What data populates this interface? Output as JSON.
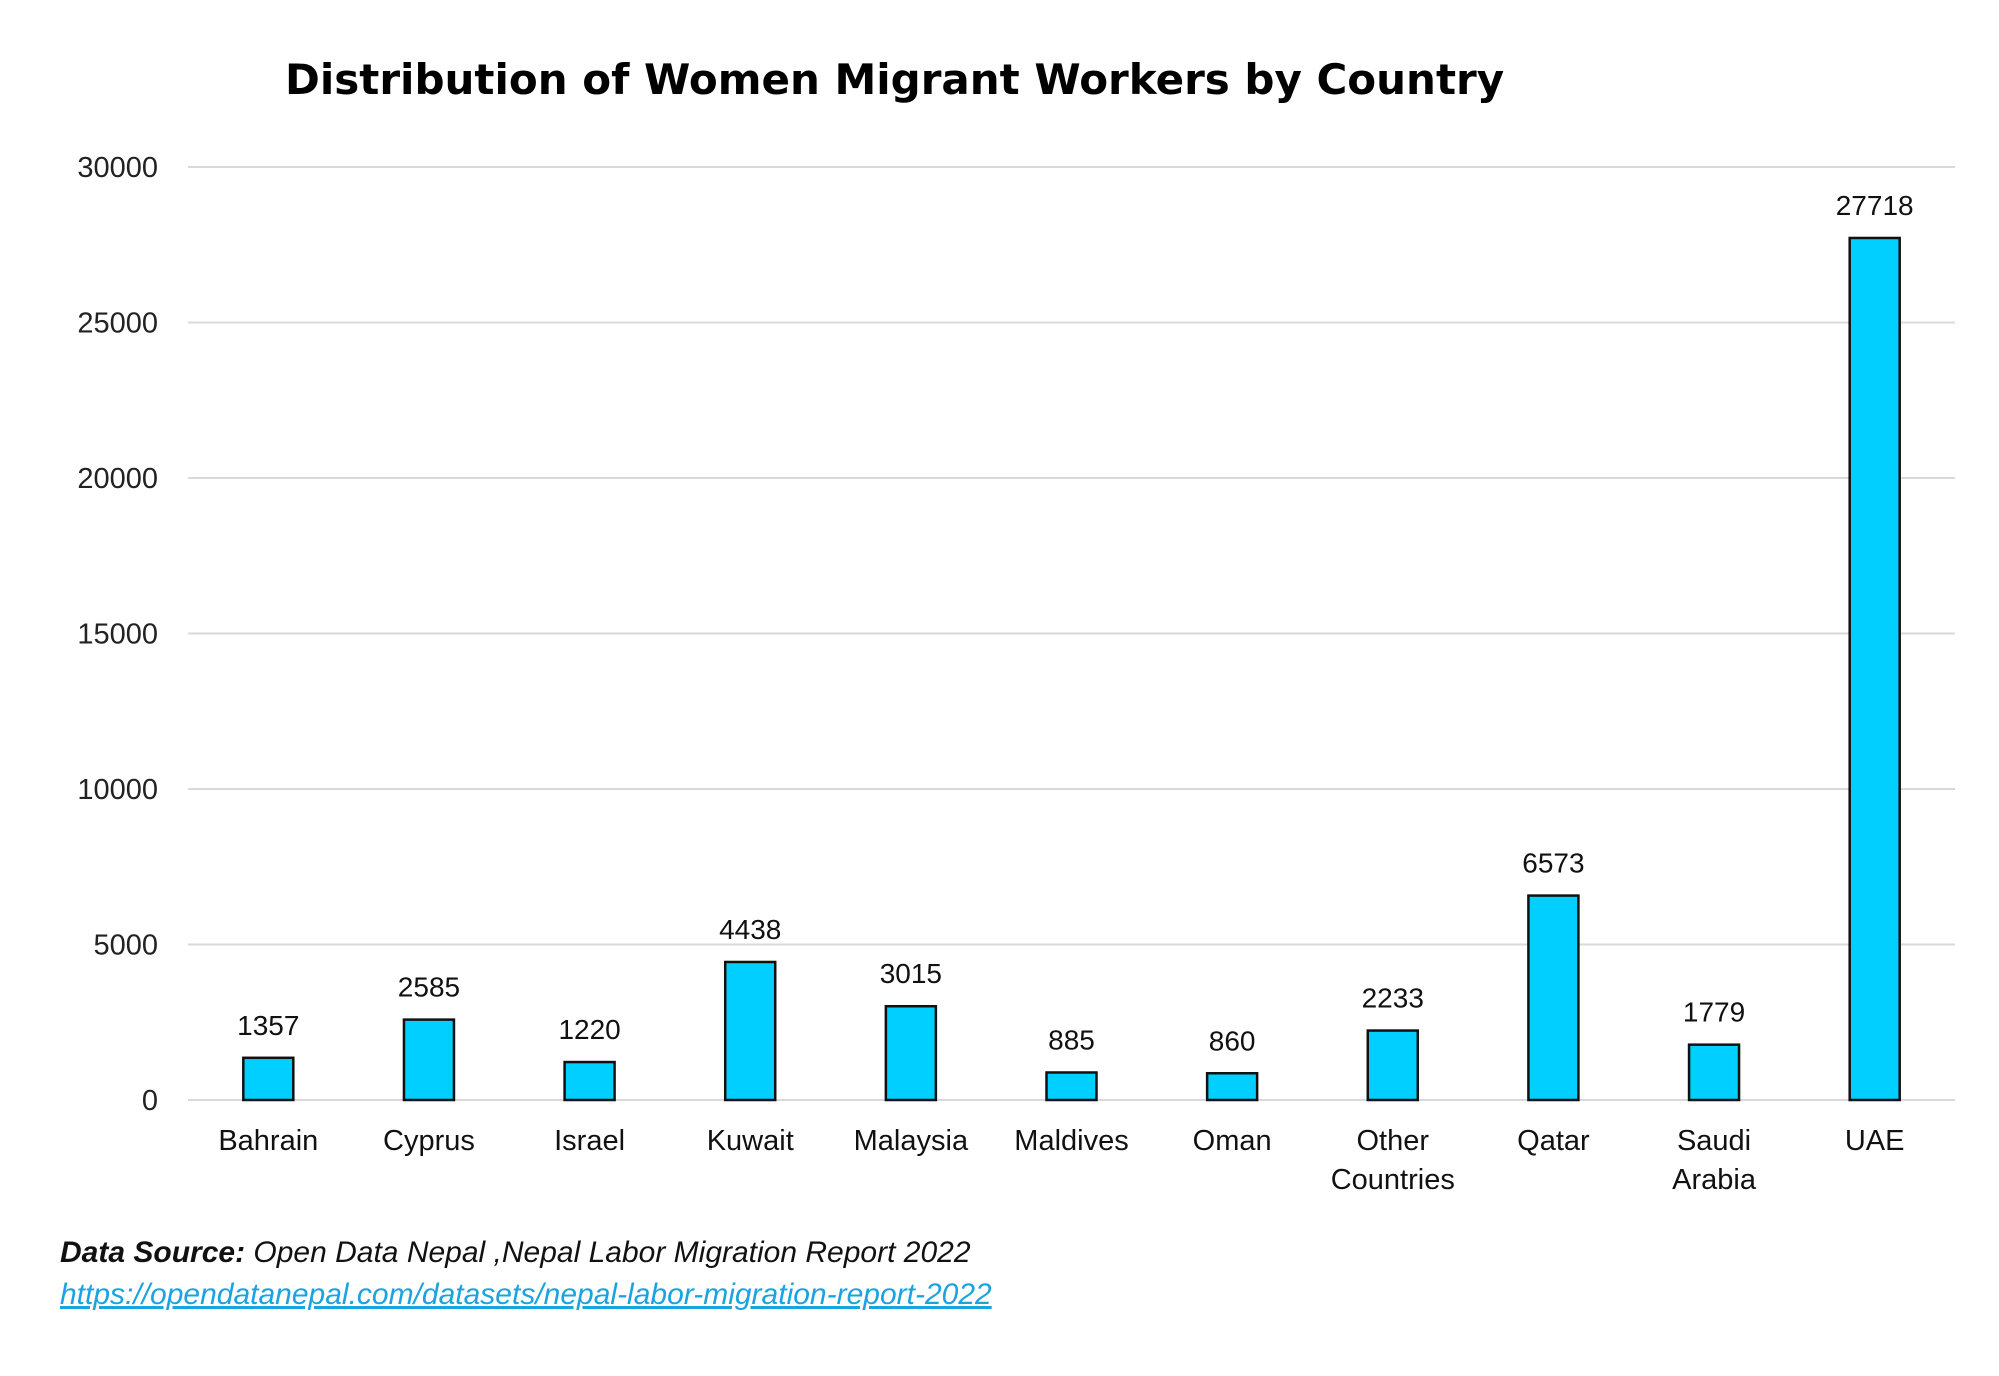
{
  "chart_data": {
    "type": "bar",
    "title": "Distribution of Women Migrant Workers by Country",
    "categories": [
      "Bahrain",
      "Cyprus",
      "Israel",
      "Kuwait",
      "Malaysia",
      "Maldives",
      "Oman",
      "Other Countries",
      "Qatar",
      "Saudi Arabia",
      "UAE"
    ],
    "category_lines": [
      [
        "Bahrain"
      ],
      [
        "Cyprus"
      ],
      [
        "Israel"
      ],
      [
        "Kuwait"
      ],
      [
        "Malaysia"
      ],
      [
        "Maldives"
      ],
      [
        "Oman"
      ],
      [
        "Other",
        "Countries"
      ],
      [
        "Qatar"
      ],
      [
        "Saudi",
        "Arabia"
      ],
      [
        "UAE"
      ]
    ],
    "values": [
      1357,
      2585,
      1220,
      4438,
      3015,
      885,
      860,
      2233,
      6573,
      1779,
      27718
    ],
    "yticks": [
      0,
      5000,
      10000,
      15000,
      20000,
      25000,
      30000
    ],
    "ylim": [
      0,
      30000
    ],
    "xlabel": "",
    "ylabel": "",
    "grid": true,
    "bar_color": "#00cfff",
    "grid_color": "#d9d9d9"
  },
  "source": {
    "label": "Data Source:",
    "text": " Open Data Nepal ,Nepal Labor Migration Report 2022",
    "url": "https://opendatanepal.com/datasets/nepal-labor-migration-report-2022",
    "link_color": "#1aa3e0"
  }
}
